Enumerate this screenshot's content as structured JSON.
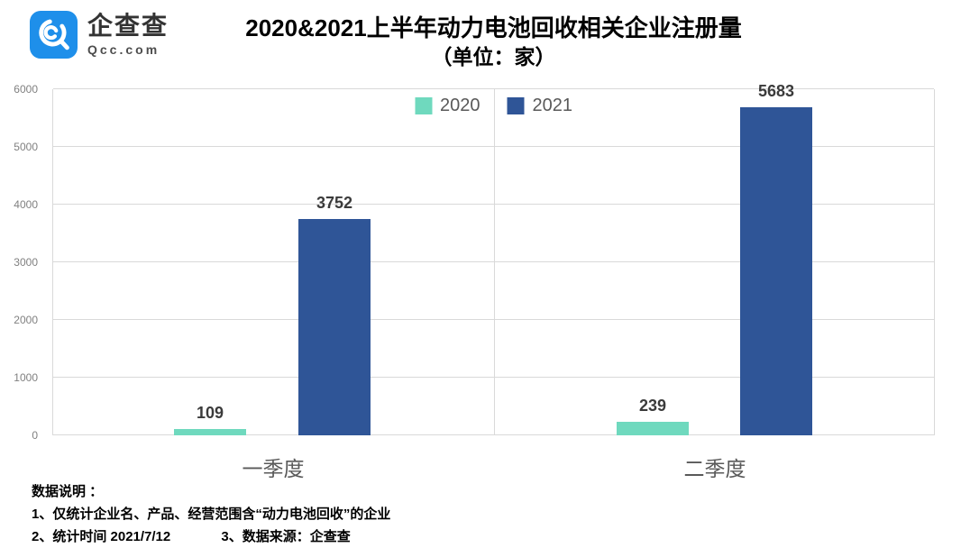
{
  "header": {
    "logo": {
      "brand_cn": "企查查",
      "brand_en": "Qcc.com",
      "brand_color": "#1e8fea"
    },
    "title": "2020&2021上半年动力电池回收相关企业注册量",
    "subtitle": "（单位：家）"
  },
  "chart_data": {
    "type": "bar",
    "categories": [
      "一季度",
      "二季度"
    ],
    "series": [
      {
        "name": "2020",
        "color": "#6fd9be",
        "values": [
          109,
          239
        ]
      },
      {
        "name": "2021",
        "color": "#2f5597",
        "values": [
          3752,
          5683
        ]
      }
    ],
    "ylim": [
      0,
      6000
    ],
    "yticks": [
      0,
      1000,
      2000,
      3000,
      4000,
      5000,
      6000
    ],
    "grid": true,
    "legend_position": "top-center",
    "xlabel": "",
    "ylabel": ""
  },
  "footer": {
    "notes_title": "数据说明 ：",
    "note1": "1、仅统计企业名、产品、经营范围含“动力电池回收”的企业",
    "note2": "2、统计时间 2021/7/12",
    "note3": "3、数据来源：企查查"
  }
}
